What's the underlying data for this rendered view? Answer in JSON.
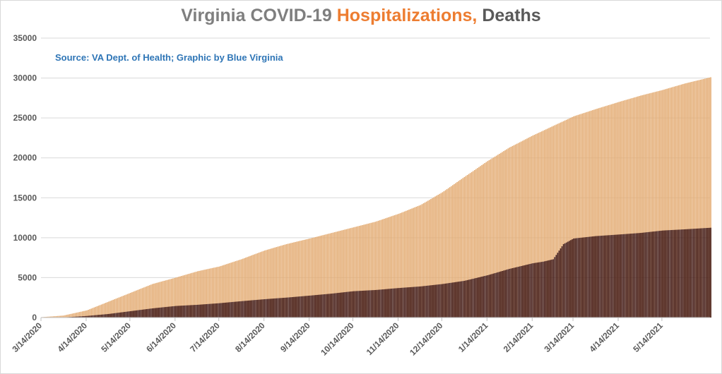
{
  "title": {
    "part1": "Virginia COVID-19 ",
    "part2": "Hospitalizations, ",
    "part3": "Deaths"
  },
  "source_note": "Source: VA Dept. of Health; Graphic by Blue Virginia",
  "chart_data": {
    "type": "bar",
    "stacked": false,
    "title": "Virginia COVID-19 Hospitalizations, Deaths",
    "ylim": [
      0,
      35000
    ],
    "yticks": [
      0,
      5000,
      10000,
      15000,
      20000,
      25000,
      30000,
      35000
    ],
    "xlim": [
      "2020-03-14",
      "2021-06-16"
    ],
    "xtick_labels": [
      "3/14/2020",
      "4/14/2020",
      "5/14/2020",
      "6/14/2020",
      "7/14/2020",
      "8/14/2020",
      "9/14/2020",
      "10/14/2020",
      "11/14/2020",
      "12/14/2020",
      "1/14/2021",
      "2/14/2021",
      "3/14/2021",
      "4/14/2021",
      "5/14/2021"
    ],
    "xtick_dates": [
      "2020-03-14",
      "2020-04-14",
      "2020-05-14",
      "2020-06-14",
      "2020-07-14",
      "2020-08-14",
      "2020-09-14",
      "2020-10-14",
      "2020-11-14",
      "2020-12-14",
      "2021-01-14",
      "2021-02-14",
      "2021-03-14",
      "2021-04-14",
      "2021-05-14"
    ],
    "grid": true,
    "legend": "none",
    "series": [
      {
        "color": "#e3ab72",
        "dates": [
          "2020-03-14",
          "2020-03-29",
          "2020-04-14",
          "2020-04-29",
          "2020-05-14",
          "2020-05-29",
          "2020-06-14",
          "2020-06-29",
          "2020-07-14",
          "2020-07-29",
          "2020-08-14",
          "2020-08-29",
          "2020-09-14",
          "2020-09-29",
          "2020-10-14",
          "2020-10-29",
          "2020-11-14",
          "2020-11-29",
          "2020-12-14",
          "2020-12-29",
          "2021-01-14",
          "2021-01-29",
          "2021-02-14",
          "2021-02-28",
          "2021-03-14",
          "2021-03-29",
          "2021-04-14",
          "2021-04-29",
          "2021-05-14",
          "2021-05-29",
          "2021-06-16"
        ],
        "values": [
          50,
          250,
          900,
          2000,
          3100,
          4200,
          5000,
          5800,
          6400,
          7300,
          8400,
          9200,
          9900,
          10600,
          11300,
          12000,
          13000,
          14100,
          15700,
          17600,
          19600,
          21300,
          22800,
          24000,
          25200,
          26100,
          27000,
          27800,
          28500,
          29300,
          30100
        ]
      },
      {
        "color": "#3d1410",
        "dates": [
          "2020-03-14",
          "2020-03-29",
          "2020-04-14",
          "2020-04-29",
          "2020-05-14",
          "2020-05-29",
          "2020-06-14",
          "2020-06-29",
          "2020-07-14",
          "2020-07-29",
          "2020-08-14",
          "2020-08-29",
          "2020-09-14",
          "2020-09-29",
          "2020-10-14",
          "2020-10-29",
          "2020-11-14",
          "2020-11-29",
          "2020-12-14",
          "2020-12-29",
          "2021-01-14",
          "2021-01-29",
          "2021-02-14",
          "2021-02-21",
          "2021-02-28",
          "2021-03-07",
          "2021-03-14",
          "2021-03-29",
          "2021-04-14",
          "2021-04-29",
          "2021-05-14",
          "2021-05-29",
          "2021-06-16"
        ],
        "values": [
          2,
          20,
          200,
          450,
          800,
          1150,
          1450,
          1600,
          1800,
          2050,
          2300,
          2500,
          2750,
          3000,
          3300,
          3450,
          3700,
          3900,
          4200,
          4600,
          5300,
          6100,
          6800,
          7000,
          7300,
          9200,
          9900,
          10200,
          10400,
          10600,
          10900,
          11050,
          11250
        ]
      }
    ]
  }
}
